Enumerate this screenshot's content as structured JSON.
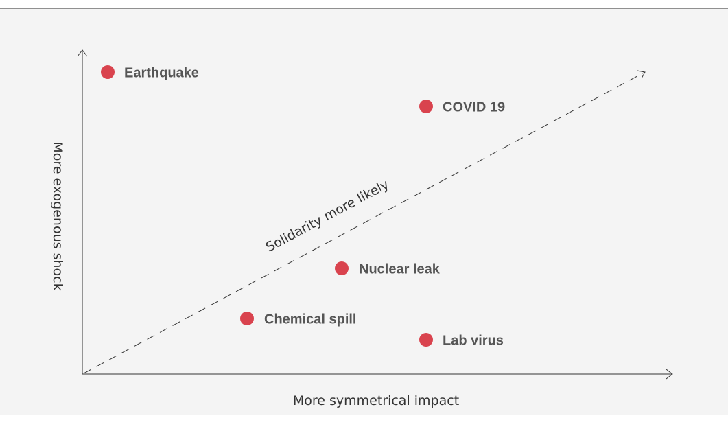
{
  "axes": {
    "x_label": "More symmetrical impact",
    "y_label": "More exogenous shock"
  },
  "trend_label": "Solidarity more likely",
  "nodes": [
    {
      "label": "Earthquake"
    },
    {
      "label": "COVID 19"
    },
    {
      "label": "Nuclear leak"
    },
    {
      "label": "Chemical spill"
    },
    {
      "label": "Lab virus"
    }
  ]
}
